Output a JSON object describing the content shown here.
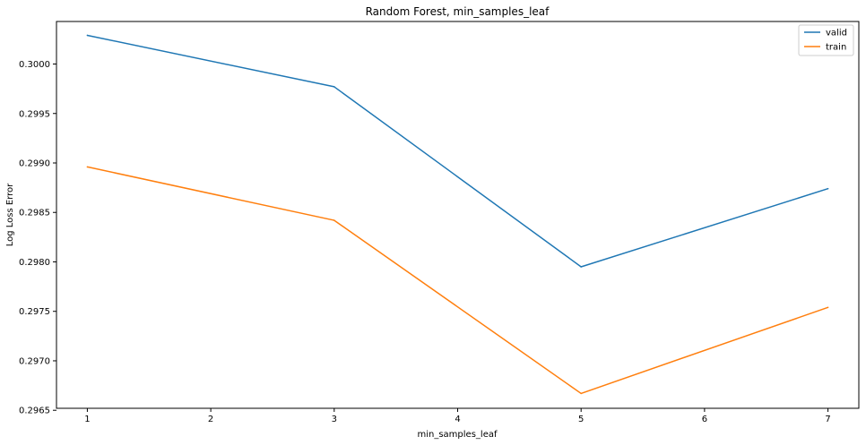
{
  "chart_data": {
    "type": "line",
    "title": "Random Forest, min_samples_leaf",
    "xlabel": "min_samples_leaf",
    "ylabel": "Log Loss Error",
    "x": [
      1,
      3,
      5,
      7
    ],
    "series": [
      {
        "name": "valid",
        "color": "#1f77b4",
        "values": [
          0.30029,
          0.29977,
          0.29795,
          0.29874
        ]
      },
      {
        "name": "train",
        "color": "#ff7f0e",
        "values": [
          0.29896,
          0.29842,
          0.29667,
          0.29754
        ]
      }
    ],
    "xlim": [
      0.75,
      7.25
    ],
    "ylim": [
      0.29652,
      0.30043
    ],
    "xticks": [
      1,
      2,
      3,
      4,
      5,
      6,
      7
    ],
    "yticks": [
      "0.2965",
      "0.2970",
      "0.2975",
      "0.2980",
      "0.2985",
      "0.2990",
      "0.2995",
      "0.3000"
    ],
    "grid": false,
    "legend_position": "top-right"
  }
}
